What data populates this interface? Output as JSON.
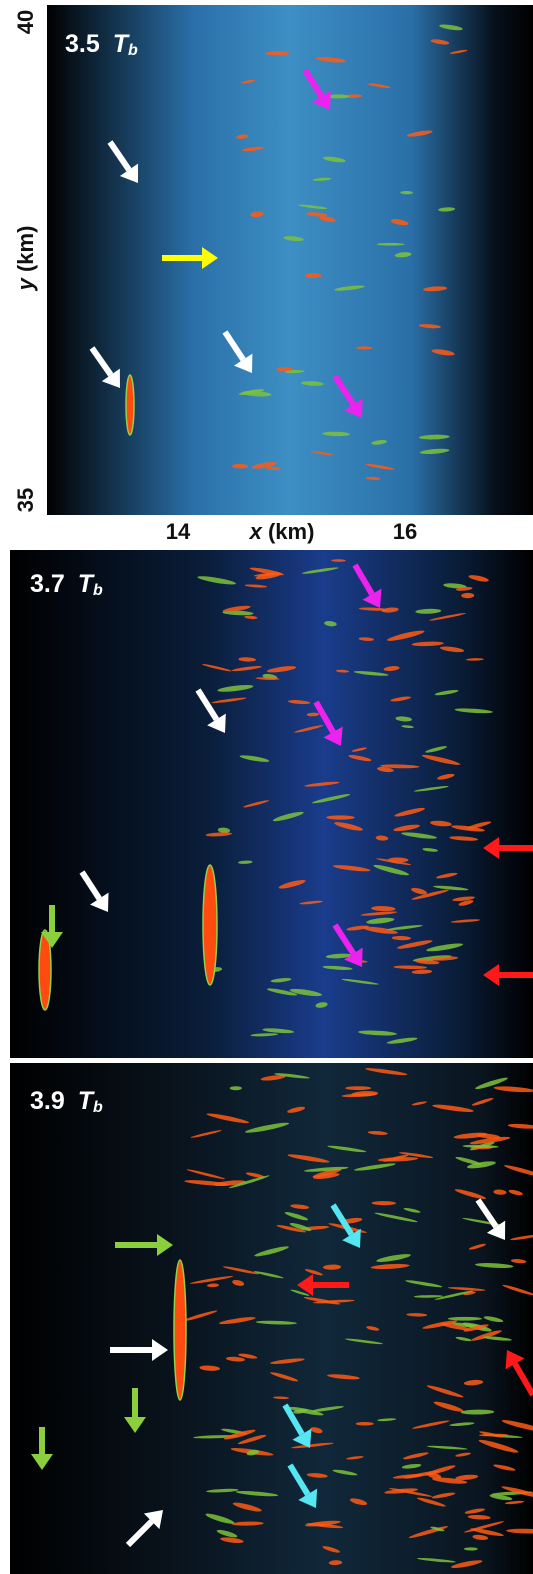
{
  "panels": [
    {
      "time": "3.5",
      "symbol": "T",
      "subscript": "b"
    },
    {
      "time": "3.7",
      "symbol": "T",
      "subscript": "b"
    },
    {
      "time": "3.9",
      "symbol": "T",
      "subscript": "b"
    }
  ],
  "y_axis": {
    "variable": "y",
    "unit": "(km)",
    "ticks": [
      "40",
      "35"
    ]
  },
  "x_axis": {
    "variable": "x",
    "unit": "(km)",
    "ticks": [
      "14",
      "16"
    ]
  }
}
